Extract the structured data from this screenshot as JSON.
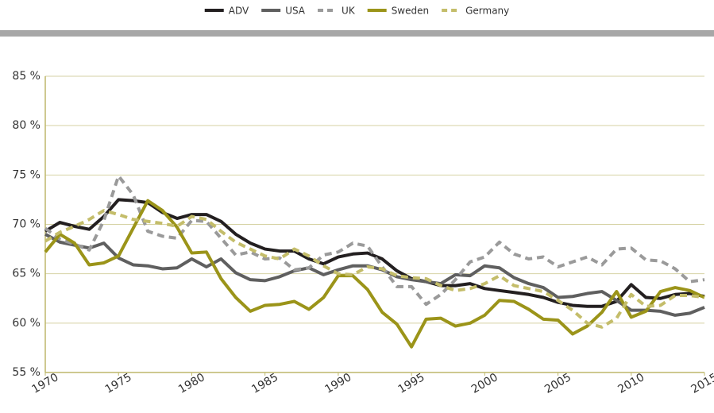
{
  "chart_data": {
    "type": "line",
    "x": [
      1970,
      1971,
      1972,
      1973,
      1974,
      1975,
      1976,
      1977,
      1978,
      1979,
      1980,
      1981,
      1982,
      1983,
      1984,
      1985,
      1986,
      1987,
      1988,
      1989,
      1990,
      1991,
      1992,
      1993,
      1994,
      1995,
      1996,
      1997,
      1998,
      1999,
      2000,
      2001,
      2002,
      2003,
      2004,
      2005,
      2006,
      2007,
      2008,
      2009,
      2010,
      2011,
      2012,
      2013,
      2014,
      2015
    ],
    "series": [
      {
        "name": "ADV",
        "color": "#231f20",
        "dashed": false,
        "values": [
          69.3,
          70.2,
          69.8,
          69.5,
          70.8,
          72.5,
          72.4,
          72.2,
          71.2,
          70.6,
          71.0,
          71.0,
          70.3,
          69.0,
          68.1,
          67.5,
          67.3,
          67.3,
          66.5,
          66.0,
          66.7,
          67.0,
          67.1,
          66.5,
          65.3,
          64.5,
          64.2,
          63.8,
          63.8,
          64.0,
          63.5,
          63.3,
          63.1,
          62.9,
          62.6,
          62.1,
          61.8,
          61.7,
          61.7,
          62.2,
          63.9,
          62.6,
          62.5,
          62.9,
          63.0,
          62.7
        ]
      },
      {
        "name": "USA",
        "color": "#5f5f5f",
        "dashed": false,
        "values": [
          69.0,
          68.2,
          67.9,
          67.6,
          68.1,
          66.6,
          65.9,
          65.8,
          65.5,
          65.6,
          66.5,
          65.7,
          66.5,
          65.1,
          64.4,
          64.3,
          64.7,
          65.3,
          65.6,
          64.9,
          65.4,
          65.8,
          65.8,
          65.4,
          64.7,
          64.4,
          64.2,
          64.0,
          64.9,
          64.8,
          65.8,
          65.6,
          64.6,
          64.0,
          63.6,
          62.6,
          62.7,
          63.0,
          63.2,
          62.3,
          61.3,
          61.3,
          61.2,
          60.8,
          61.0,
          61.6
        ]
      },
      {
        "name": "UK",
        "color": "#9a9a9a",
        "dashed": true,
        "values": [
          69.6,
          68.5,
          68.0,
          67.4,
          70.4,
          74.9,
          73.0,
          69.3,
          68.8,
          68.6,
          70.4,
          70.3,
          68.6,
          66.9,
          67.2,
          66.5,
          66.6,
          65.4,
          65.6,
          66.9,
          67.2,
          68.1,
          67.8,
          65.7,
          63.7,
          63.7,
          61.9,
          62.9,
          64.4,
          66.2,
          66.7,
          68.2,
          67.0,
          66.5,
          66.7,
          65.7,
          66.2,
          66.7,
          65.9,
          67.5,
          67.6,
          66.4,
          66.3,
          65.5,
          64.2,
          64.4
        ]
      },
      {
        "name": "Sweden",
        "color": "#9b9419",
        "dashed": false,
        "values": [
          67.2,
          69.0,
          68.1,
          65.9,
          66.1,
          66.8,
          69.6,
          72.4,
          71.4,
          69.7,
          67.1,
          67.2,
          64.5,
          62.6,
          61.2,
          61.8,
          61.9,
          62.2,
          61.4,
          62.6,
          64.8,
          64.8,
          63.4,
          61.1,
          59.9,
          57.6,
          60.4,
          60.5,
          59.7,
          60.0,
          60.8,
          62.3,
          62.2,
          61.4,
          60.4,
          60.3,
          58.9,
          59.7,
          61.1,
          63.2,
          60.6,
          61.2,
          63.2,
          63.6,
          63.3,
          62.6
        ]
      },
      {
        "name": "Germany",
        "color": "#c4bd6a",
        "dashed": true,
        "values": [
          68.3,
          69.2,
          69.8,
          70.5,
          71.4,
          71.0,
          70.5,
          70.3,
          70.1,
          69.8,
          70.8,
          70.5,
          69.3,
          68.2,
          67.5,
          66.8,
          66.5,
          67.5,
          66.8,
          65.8,
          65.0,
          64.9,
          65.7,
          65.5,
          64.8,
          64.6,
          64.5,
          63.8,
          63.3,
          63.5,
          64.0,
          64.8,
          63.8,
          63.5,
          63.2,
          62.3,
          61.3,
          60.0,
          59.6,
          60.5,
          62.9,
          61.7,
          61.8,
          62.8,
          62.8,
          62.6
        ]
      }
    ],
    "xlim": [
      1970,
      2015
    ],
    "xticks": [
      1970,
      1975,
      1980,
      1985,
      1990,
      1995,
      2000,
      2005,
      2010,
      2015
    ],
    "ylim": [
      55,
      85
    ],
    "yticks": [
      {
        "value": 55,
        "label": "55 %"
      },
      {
        "value": 60,
        "label": "60 %"
      },
      {
        "value": 65,
        "label": "65 %"
      },
      {
        "value": 70,
        "label": "70 %"
      },
      {
        "value": 75,
        "label": "75 %"
      },
      {
        "value": 80,
        "label": "80 %"
      },
      {
        "value": 85,
        "label": "85 %"
      }
    ],
    "grid": true,
    "legend": "top"
  }
}
